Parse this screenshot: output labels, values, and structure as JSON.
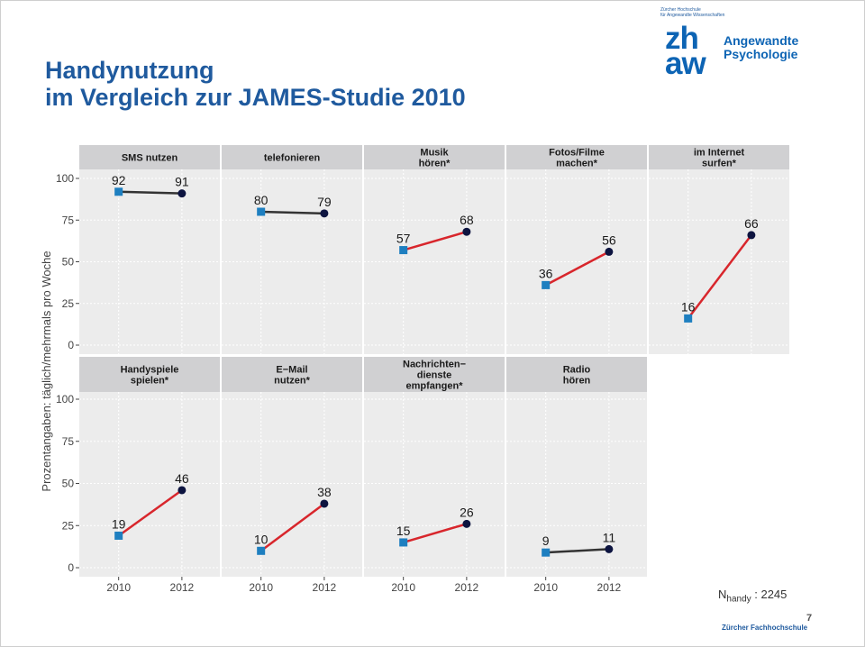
{
  "slide": {
    "title_line1": "Handynutzung",
    "title_line2": "im Vergleich zur JAMES-Studie 2010",
    "page_number": "7",
    "footer": "Zürcher Fachhochschule",
    "n_label": "N",
    "n_sub": "handy",
    "n_value": " : 2245"
  },
  "logo": {
    "institution_line1": "Zürcher Hochschule",
    "institution_line2": "für Angewandte Wissenschaften",
    "zh": "zh",
    "aw": "aw",
    "dept_line1": "Angewandte",
    "dept_line2": "Psychologie"
  },
  "colors": {
    "panel_bg": "#ececec",
    "strip_bg": "#d0d0d2",
    "significant_line": "#d8262c",
    "nonsignificant_line": "#333333",
    "point_2010": "#1e7fc0",
    "point_2012": "#0d1440"
  },
  "chart_data": {
    "type": "line",
    "ylabel": "Prozentangaben: täglich/mehrmals pro Woche",
    "xlabel": "",
    "x": [
      "2010",
      "2012"
    ],
    "ylim": [
      0,
      100
    ],
    "yticks": [
      0,
      25,
      50,
      75,
      100
    ],
    "grid": true,
    "panels": [
      {
        "label": [
          "SMS nutzen"
        ],
        "values": [
          92,
          91
        ],
        "significant": false
      },
      {
        "label": [
          "telefonieren"
        ],
        "values": [
          80,
          79
        ],
        "significant": false
      },
      {
        "label": [
          "Musik",
          "hören*"
        ],
        "values": [
          57,
          68
        ],
        "significant": true
      },
      {
        "label": [
          "Fotos/Filme",
          "machen*"
        ],
        "values": [
          36,
          56
        ],
        "significant": true
      },
      {
        "label": [
          "im Internet",
          "surfen*"
        ],
        "values": [
          16,
          66
        ],
        "significant": true
      },
      {
        "label": [
          "Handyspiele",
          "spielen*"
        ],
        "values": [
          19,
          46
        ],
        "significant": true
      },
      {
        "label": [
          "E−Mail",
          "nutzen*"
        ],
        "values": [
          10,
          38
        ],
        "significant": true
      },
      {
        "label": [
          "Nachrichten−",
          "dienste",
          "empfangen*"
        ],
        "values": [
          15,
          26
        ],
        "significant": true
      },
      {
        "label": [
          "Radio",
          "hören"
        ],
        "values": [
          9,
          11
        ],
        "significant": false
      }
    ]
  }
}
